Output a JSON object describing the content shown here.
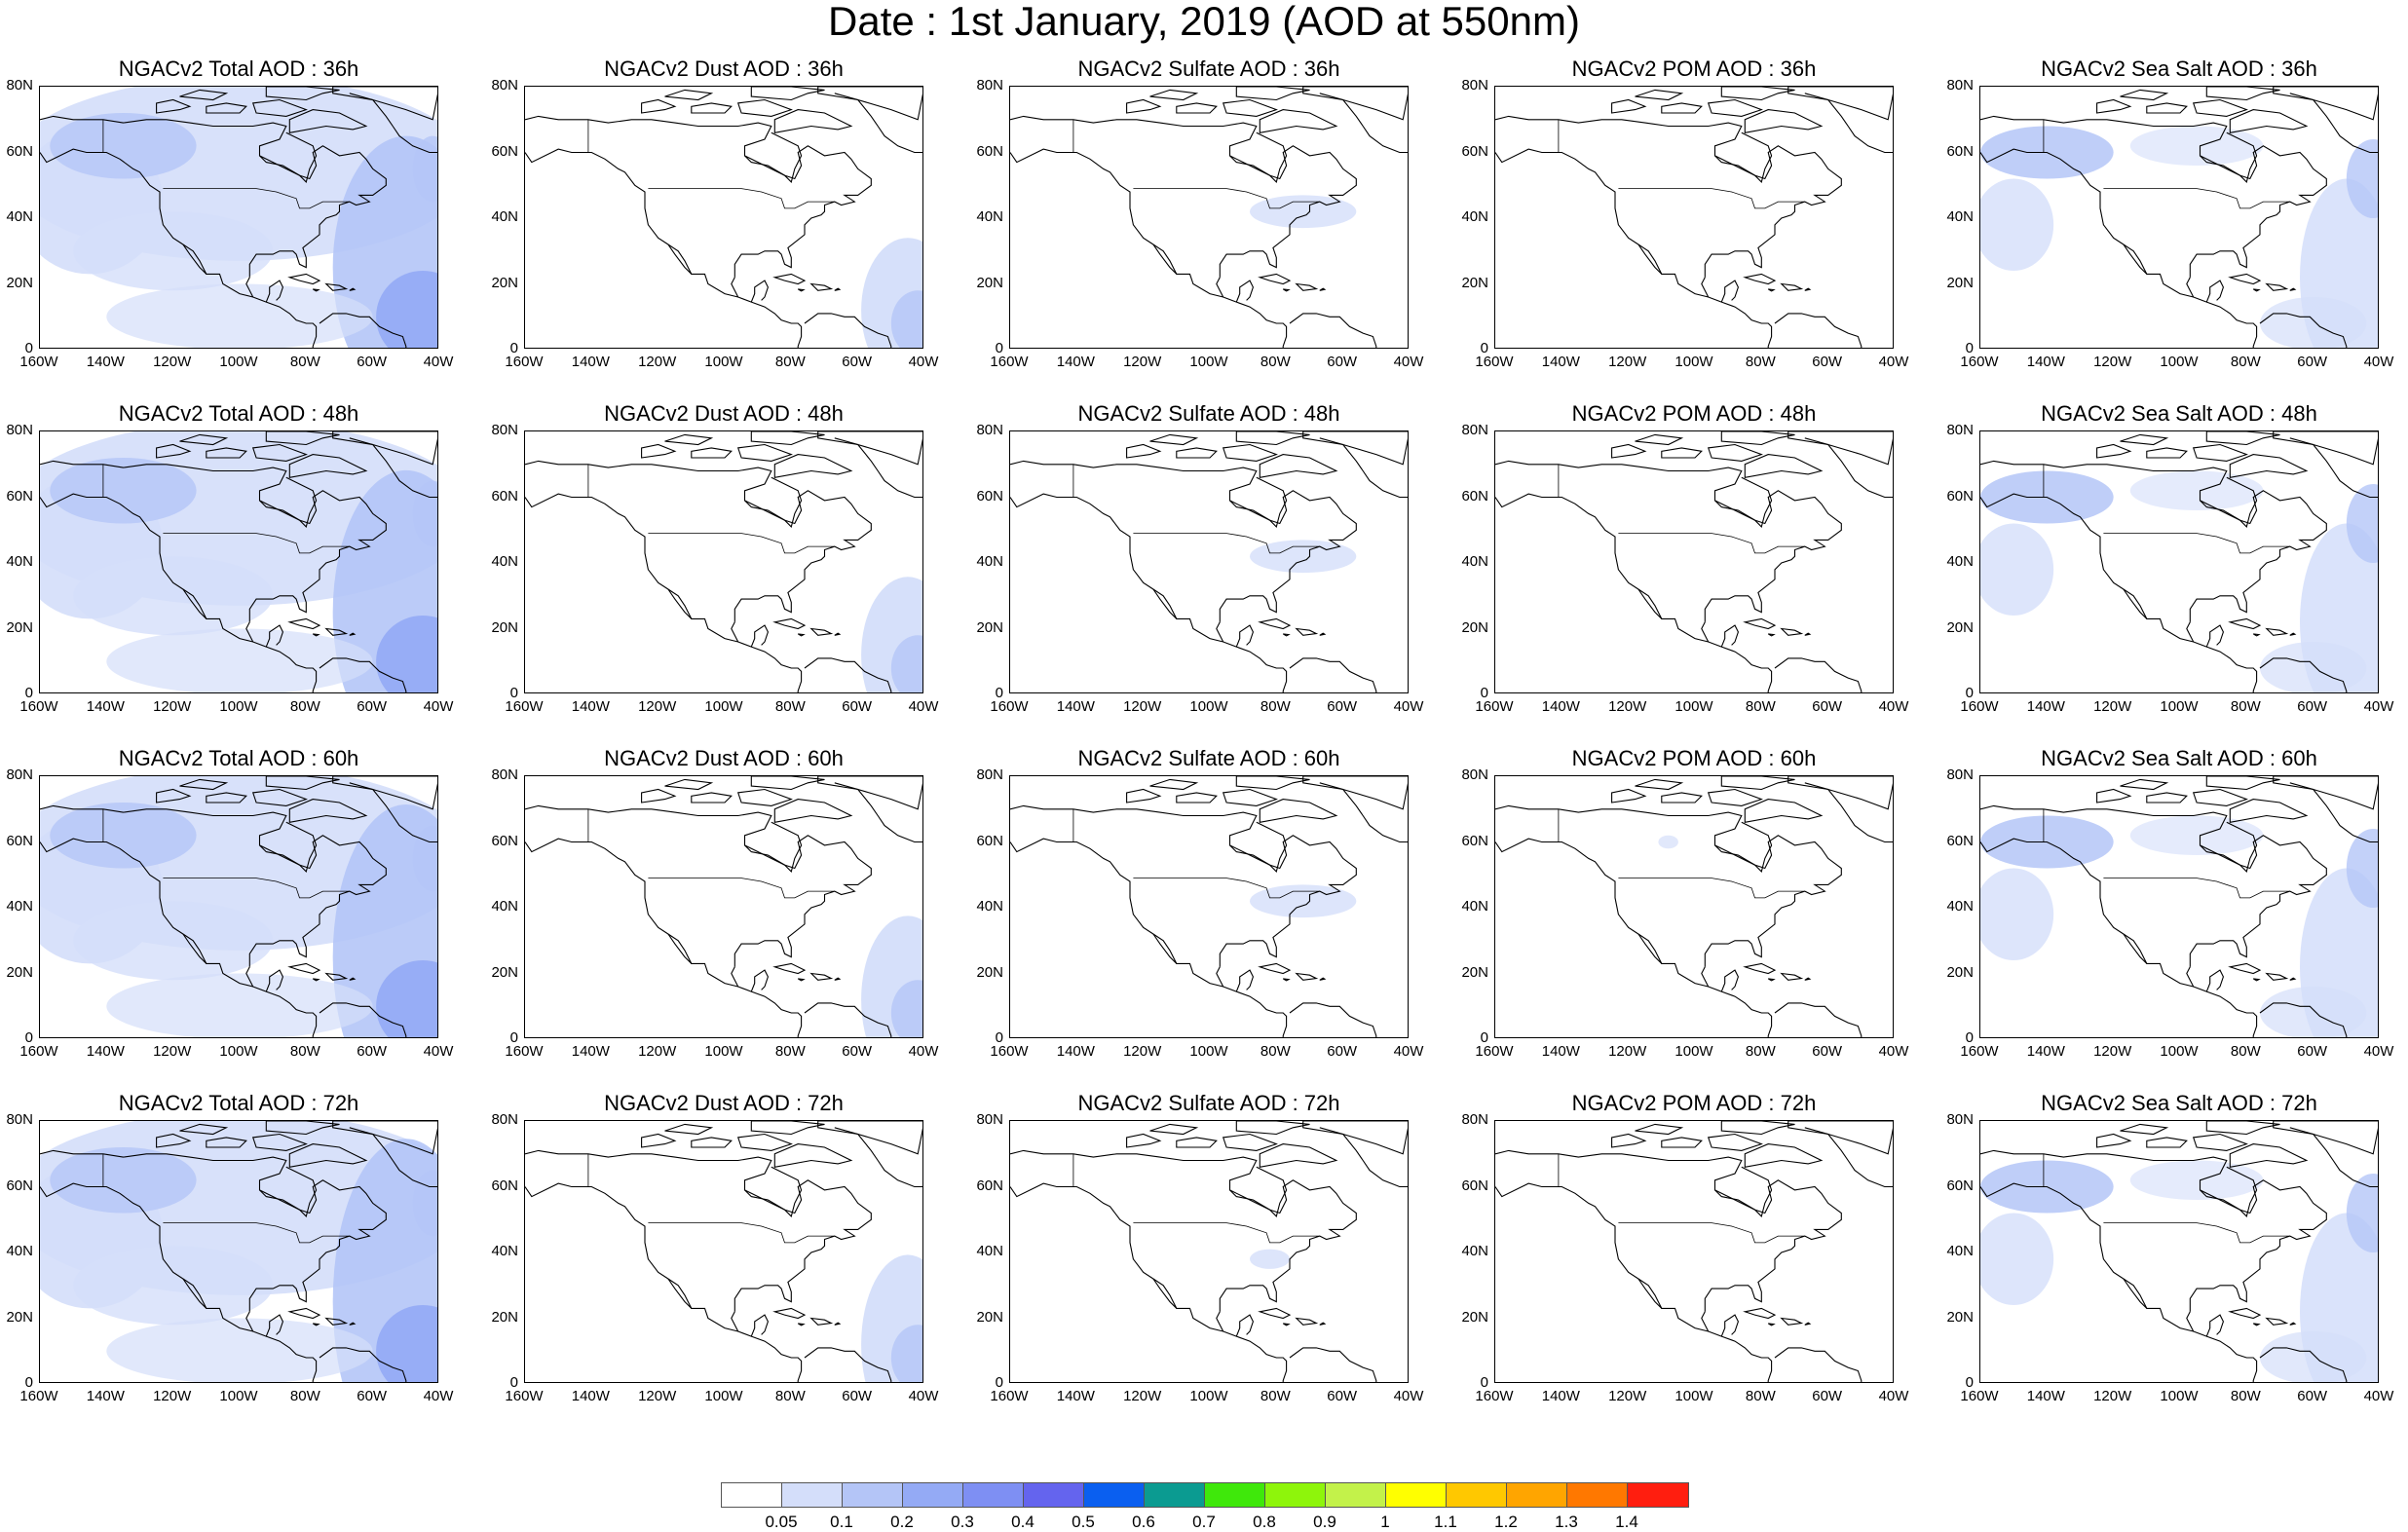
{
  "title": "Date : 1st January, 2019 (AOD at 550nm)",
  "lat_ticks": [
    "80N",
    "60N",
    "40N",
    "20N",
    "0"
  ],
  "lon_ticks": [
    "160W",
    "140W",
    "120W",
    "100W",
    "80W",
    "60W",
    "40W"
  ],
  "species": [
    {
      "key": "total",
      "label": "Total AOD"
    },
    {
      "key": "dust",
      "label": "Dust AOD"
    },
    {
      "key": "sulfate",
      "label": "Sulfate AOD"
    },
    {
      "key": "pom",
      "label": "POM AOD"
    },
    {
      "key": "seasalt",
      "label": "Sea Salt AOD"
    }
  ],
  "panels": [
    [
      "NGACv2 Total AOD : 36h",
      "NGACv2 Dust AOD : 36h",
      "NGACv2 Sulfate AOD : 36h",
      "NGACv2 POM AOD : 36h",
      "NGACv2 Sea Salt AOD : 36h"
    ],
    [
      "NGACv2 Total AOD : 48h",
      "NGACv2 Dust AOD : 48h",
      "NGACv2 Sulfate AOD : 48h",
      "NGACv2 POM AOD : 48h",
      "NGACv2 Sea Salt AOD : 48h"
    ],
    [
      "NGACv2 Total AOD : 60h",
      "NGACv2 Dust AOD : 60h",
      "NGACv2 Sulfate AOD : 60h",
      "NGACv2 POM AOD : 60h",
      "NGACv2 Sea Salt AOD : 60h"
    ],
    [
      "NGACv2 Total AOD : 72h",
      "NGACv2 Dust AOD : 72h",
      "NGACv2 Sulfate AOD : 72h",
      "NGACv2 POM AOD : 72h",
      "NGACv2 Sea Salt  AOD : 72h"
    ]
  ],
  "colorbar": {
    "colors": [
      "#ffffff",
      "#d4defa",
      "#b4c5f7",
      "#94aaf5",
      "#7e8ff3",
      "#6464ee",
      "#0a5ff0",
      "#0b9b91",
      "#3fe80b",
      "#8ef50b",
      "#c3f24a",
      "#ffff00",
      "#ffc800",
      "#ffa500",
      "#ff7800",
      "#ff1e0f"
    ],
    "labels": [
      "0.05",
      "0.1",
      "0.2",
      "0.3",
      "0.4",
      "0.5",
      "0.6",
      "0.7",
      "0.8",
      "0.9",
      "1",
      "1.1",
      "1.2",
      "1.3",
      "1.4"
    ]
  },
  "style": {
    "coast_color": "#000000",
    "light_blue": "#d4defa",
    "mid_blue": "#b4c5f7",
    "dark_blue": "#94aaf5"
  }
}
